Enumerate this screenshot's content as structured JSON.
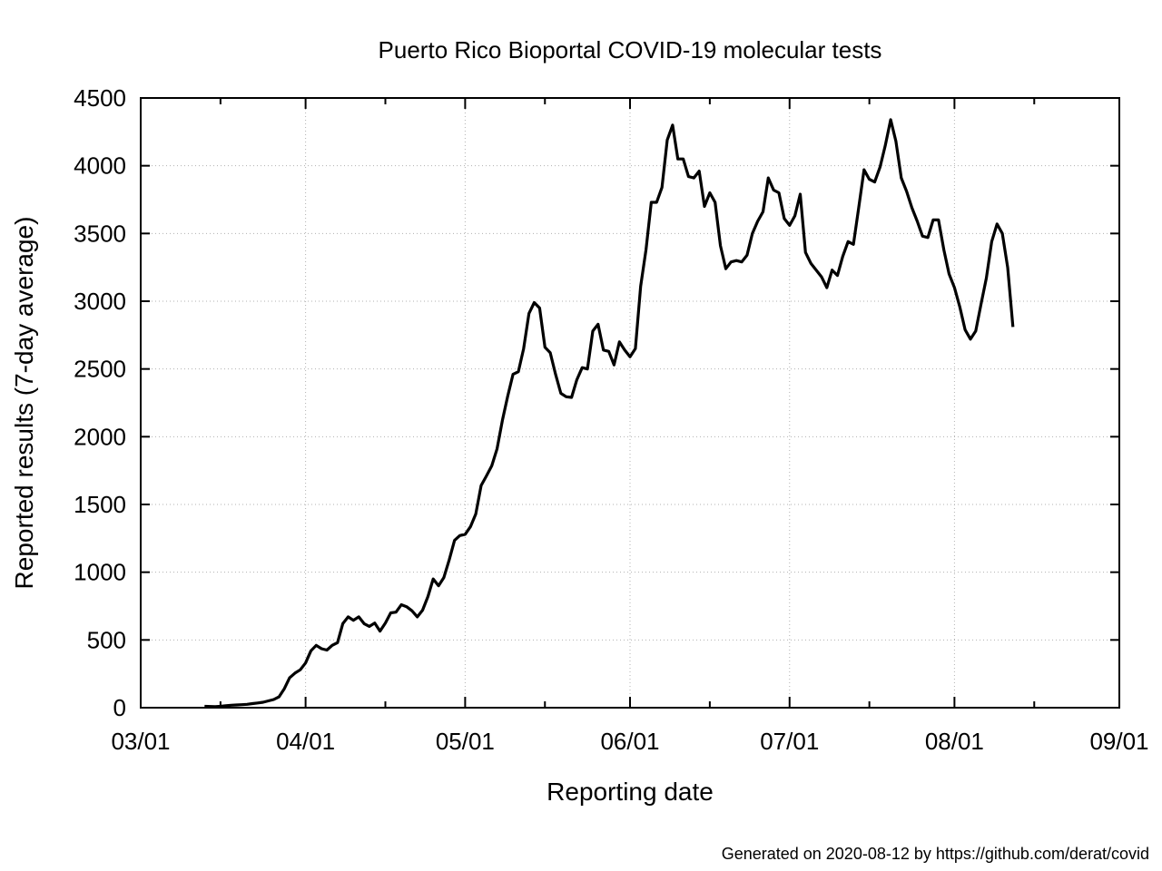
{
  "chart_data": {
    "type": "line",
    "title": "Puerto Rico Bioportal COVID-19 molecular tests",
    "xlabel": "Reporting date",
    "ylabel": "Reported results (7-day average)",
    "x_ticks": [
      "03/01",
      "04/01",
      "05/01",
      "06/01",
      "07/01",
      "08/01",
      "09/01"
    ],
    "y_ticks": [
      0,
      500,
      1000,
      1500,
      2000,
      2500,
      3000,
      3500,
      4000,
      4500
    ],
    "xlim": [
      "2020-03-01",
      "2020-09-01"
    ],
    "ylim": [
      0,
      4500
    ],
    "grid": true,
    "legend": "none",
    "series": [
      {
        "color": "#000000",
        "points": [
          [
            "2020-03-13",
            10
          ],
          [
            "2020-03-15",
            8
          ],
          [
            "2020-03-16",
            10
          ],
          [
            "2020-03-17",
            15
          ],
          [
            "2020-03-18",
            18
          ],
          [
            "2020-03-19",
            20
          ],
          [
            "2020-03-20",
            22
          ],
          [
            "2020-03-21",
            25
          ],
          [
            "2020-03-22",
            30
          ],
          [
            "2020-03-23",
            35
          ],
          [
            "2020-03-24",
            40
          ],
          [
            "2020-03-25",
            50
          ],
          [
            "2020-03-26",
            60
          ],
          [
            "2020-03-27",
            80
          ],
          [
            "2020-03-28",
            140
          ],
          [
            "2020-03-29",
            220
          ],
          [
            "2020-03-30",
            255
          ],
          [
            "2020-03-31",
            280
          ],
          [
            "2020-04-01",
            330
          ],
          [
            "2020-04-02",
            420
          ],
          [
            "2020-04-03",
            460
          ],
          [
            "2020-04-04",
            435
          ],
          [
            "2020-04-05",
            425
          ],
          [
            "2020-04-06",
            460
          ],
          [
            "2020-04-07",
            480
          ],
          [
            "2020-04-08",
            620
          ],
          [
            "2020-04-09",
            670
          ],
          [
            "2020-04-10",
            645
          ],
          [
            "2020-04-11",
            670
          ],
          [
            "2020-04-12",
            620
          ],
          [
            "2020-04-13",
            600
          ],
          [
            "2020-04-14",
            625
          ],
          [
            "2020-04-15",
            565
          ],
          [
            "2020-04-16",
            625
          ],
          [
            "2020-04-17",
            700
          ],
          [
            "2020-04-18",
            705
          ],
          [
            "2020-04-19",
            760
          ],
          [
            "2020-04-20",
            745
          ],
          [
            "2020-04-21",
            715
          ],
          [
            "2020-04-22",
            670
          ],
          [
            "2020-04-23",
            720
          ],
          [
            "2020-04-24",
            820
          ],
          [
            "2020-04-25",
            950
          ],
          [
            "2020-04-26",
            900
          ],
          [
            "2020-04-27",
            960
          ],
          [
            "2020-04-28",
            1090
          ],
          [
            "2020-04-29",
            1235
          ],
          [
            "2020-04-30",
            1270
          ],
          [
            "2020-05-01",
            1280
          ],
          [
            "2020-05-02",
            1335
          ],
          [
            "2020-05-03",
            1430
          ],
          [
            "2020-05-04",
            1640
          ],
          [
            "2020-05-05",
            1710
          ],
          [
            "2020-05-06",
            1785
          ],
          [
            "2020-05-07",
            1910
          ],
          [
            "2020-05-08",
            2120
          ],
          [
            "2020-05-09",
            2300
          ],
          [
            "2020-05-10",
            2460
          ],
          [
            "2020-05-11",
            2480
          ],
          [
            "2020-05-12",
            2650
          ],
          [
            "2020-05-13",
            2910
          ],
          [
            "2020-05-14",
            2990
          ],
          [
            "2020-05-15",
            2950
          ],
          [
            "2020-05-16",
            2660
          ],
          [
            "2020-05-17",
            2620
          ],
          [
            "2020-05-18",
            2460
          ],
          [
            "2020-05-19",
            2320
          ],
          [
            "2020-05-20",
            2295
          ],
          [
            "2020-05-21",
            2290
          ],
          [
            "2020-05-22",
            2420
          ],
          [
            "2020-05-23",
            2510
          ],
          [
            "2020-05-24",
            2500
          ],
          [
            "2020-05-25",
            2780
          ],
          [
            "2020-05-26",
            2830
          ],
          [
            "2020-05-27",
            2640
          ],
          [
            "2020-05-28",
            2630
          ],
          [
            "2020-05-29",
            2530
          ],
          [
            "2020-05-30",
            2700
          ],
          [
            "2020-05-31",
            2640
          ],
          [
            "2020-06-01",
            2590
          ],
          [
            "2020-06-02",
            2650
          ],
          [
            "2020-06-03",
            3110
          ],
          [
            "2020-06-04",
            3380
          ],
          [
            "2020-06-05",
            3730
          ],
          [
            "2020-06-06",
            3730
          ],
          [
            "2020-06-07",
            3840
          ],
          [
            "2020-06-08",
            4190
          ],
          [
            "2020-06-09",
            4300
          ],
          [
            "2020-06-10",
            4050
          ],
          [
            "2020-06-11",
            4050
          ],
          [
            "2020-06-12",
            3920
          ],
          [
            "2020-06-13",
            3910
          ],
          [
            "2020-06-14",
            3960
          ],
          [
            "2020-06-15",
            3700
          ],
          [
            "2020-06-16",
            3800
          ],
          [
            "2020-06-17",
            3730
          ],
          [
            "2020-06-18",
            3410
          ],
          [
            "2020-06-19",
            3240
          ],
          [
            "2020-06-20",
            3290
          ],
          [
            "2020-06-21",
            3300
          ],
          [
            "2020-06-22",
            3290
          ],
          [
            "2020-06-23",
            3340
          ],
          [
            "2020-06-24",
            3500
          ],
          [
            "2020-06-25",
            3590
          ],
          [
            "2020-06-26",
            3660
          ],
          [
            "2020-06-27",
            3910
          ],
          [
            "2020-06-28",
            3820
          ],
          [
            "2020-06-29",
            3800
          ],
          [
            "2020-06-30",
            3610
          ],
          [
            "2020-07-01",
            3560
          ],
          [
            "2020-07-02",
            3630
          ],
          [
            "2020-07-03",
            3790
          ],
          [
            "2020-07-04",
            3360
          ],
          [
            "2020-07-05",
            3280
          ],
          [
            "2020-07-06",
            3230
          ],
          [
            "2020-07-07",
            3180
          ],
          [
            "2020-07-08",
            3100
          ],
          [
            "2020-07-09",
            3230
          ],
          [
            "2020-07-10",
            3190
          ],
          [
            "2020-07-11",
            3330
          ],
          [
            "2020-07-12",
            3440
          ],
          [
            "2020-07-13",
            3420
          ],
          [
            "2020-07-14",
            3690
          ],
          [
            "2020-07-15",
            3970
          ],
          [
            "2020-07-16",
            3900
          ],
          [
            "2020-07-17",
            3880
          ],
          [
            "2020-07-18",
            3990
          ],
          [
            "2020-07-19",
            4150
          ],
          [
            "2020-07-20",
            4340
          ],
          [
            "2020-07-21",
            4180
          ],
          [
            "2020-07-22",
            3910
          ],
          [
            "2020-07-23",
            3810
          ],
          [
            "2020-07-24",
            3690
          ],
          [
            "2020-07-25",
            3590
          ],
          [
            "2020-07-26",
            3480
          ],
          [
            "2020-07-27",
            3470
          ],
          [
            "2020-07-28",
            3600
          ],
          [
            "2020-07-29",
            3600
          ],
          [
            "2020-07-30",
            3380
          ],
          [
            "2020-07-31",
            3200
          ],
          [
            "2020-08-01",
            3100
          ],
          [
            "2020-08-02",
            2960
          ],
          [
            "2020-08-03",
            2790
          ],
          [
            "2020-08-04",
            2720
          ],
          [
            "2020-08-05",
            2780
          ],
          [
            "2020-08-06",
            2980
          ],
          [
            "2020-08-07",
            3170
          ],
          [
            "2020-08-08",
            3440
          ],
          [
            "2020-08-09",
            3570
          ],
          [
            "2020-08-10",
            3500
          ],
          [
            "2020-08-11",
            3250
          ],
          [
            "2020-08-12",
            2810
          ]
        ]
      }
    ]
  },
  "footer": "Generated on 2020-08-12 by https://github.com/derat/covid"
}
